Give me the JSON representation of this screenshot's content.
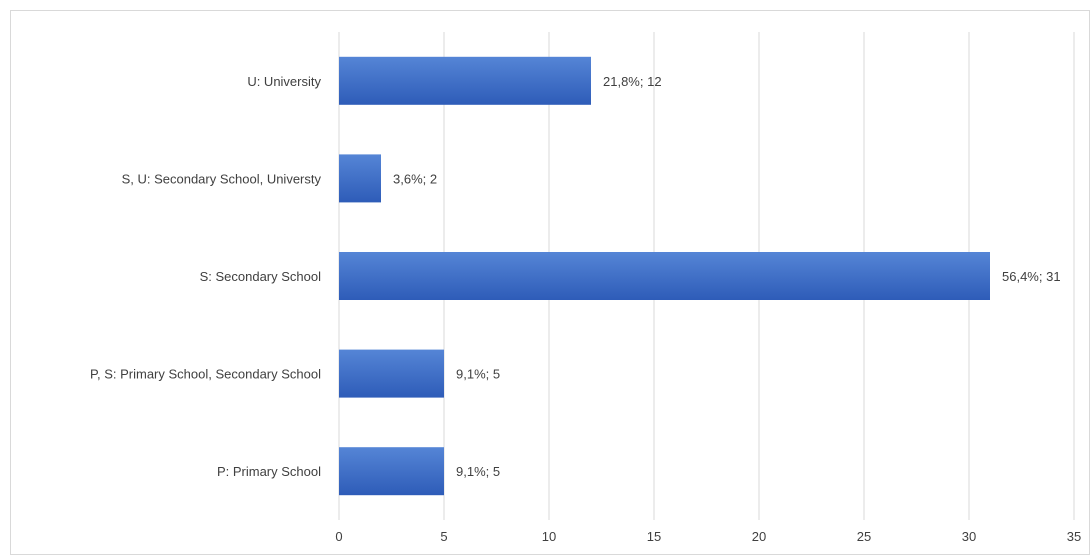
{
  "chart_data": {
    "type": "bar",
    "orientation": "horizontal",
    "categories": [
      "U: University",
      "S, U: Secondary School, Universty",
      "S: Secondary School",
      "P, S: Primary School, Secondary School",
      "P: Primary School"
    ],
    "values": [
      12,
      2,
      31,
      5,
      5
    ],
    "data_labels": [
      "21,8%; 12",
      "3,6%; 2",
      "56,4%; 31",
      "9,1%; 5",
      "9,1%; 5"
    ],
    "xlim": [
      0,
      35
    ],
    "xticks": [
      0,
      5,
      10,
      15,
      20,
      25,
      30,
      35
    ],
    "grid": true,
    "bar_color": "#4472c4",
    "bar_color_dark": "#2f5bb5",
    "title": "",
    "xlabel": "",
    "ylabel": ""
  }
}
